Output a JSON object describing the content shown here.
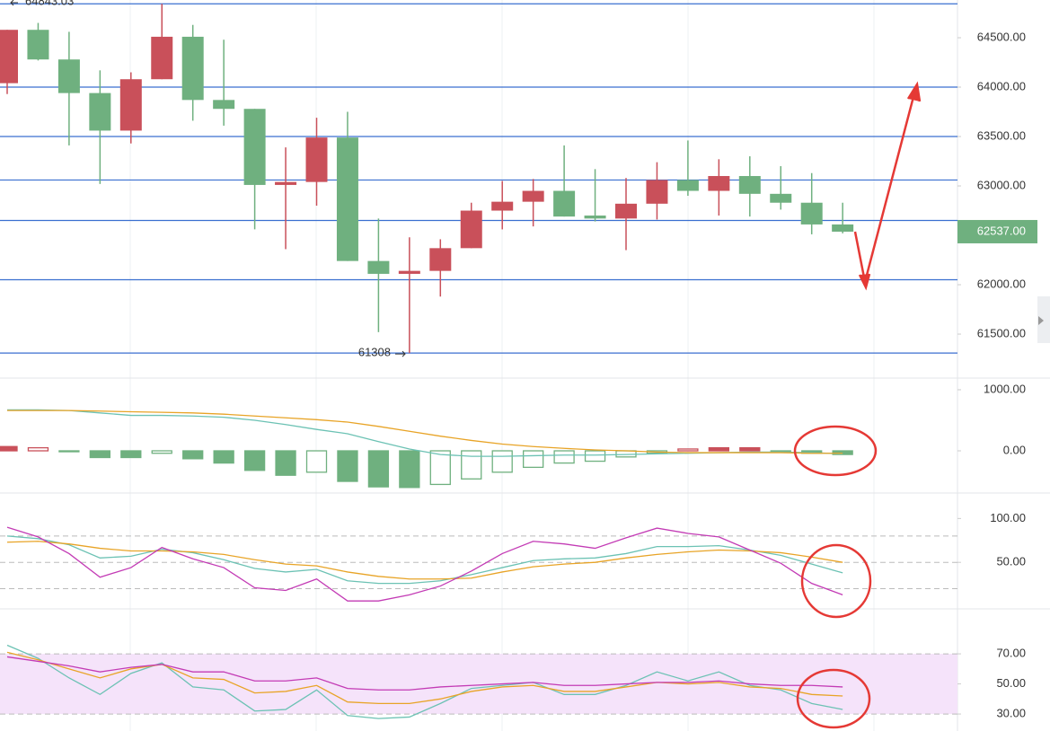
{
  "chart_data": [
    {
      "type": "candlestick",
      "up_color": "#c9505a",
      "down_color": "#6fb07f",
      "line_color": "#3a6fd0",
      "open": [
        64040,
        64580,
        64280,
        63940,
        63560,
        64080,
        64510,
        63870,
        63780,
        63010,
        63040,
        63490,
        62240,
        62110,
        62140,
        62370,
        62750,
        62840,
        62950,
        62700,
        62670,
        62820,
        63060,
        62950,
        63100,
        62920,
        62830,
        62610
      ],
      "high": [
        64580,
        64650,
        64560,
        64170,
        64150,
        64843.03,
        64630,
        64480,
        63780,
        63390,
        63690,
        63750,
        62670,
        62480,
        62460,
        62830,
        63050,
        63070,
        63410,
        63170,
        63080,
        63240,
        63460,
        63270,
        63300,
        63200,
        63130,
        62830
      ],
      "low": [
        63930,
        64270,
        63410,
        63020,
        63430,
        64080,
        63660,
        63610,
        62560,
        62360,
        62800,
        62240,
        61520,
        61308,
        61880,
        62370,
        62560,
        62590,
        62690,
        62640,
        62350,
        62660,
        62900,
        62700,
        62690,
        62760,
        62510,
        62520
      ],
      "close": [
        64580,
        64280,
        63940,
        63560,
        64080,
        64510,
        63870,
        63780,
        63010,
        63040,
        63490,
        62240,
        62110,
        62140,
        62370,
        62750,
        62840,
        62950,
        62690,
        62670,
        62820,
        63060,
        62950,
        63100,
        62920,
        62830,
        62610,
        62537
      ],
      "horizontal_lines": [
        64843.03,
        64000,
        63500,
        63060,
        62650,
        62050,
        61308
      ],
      "last_price": {
        "value": 62537,
        "label": "62537.00"
      },
      "ylim": [
        61064,
        64882
      ],
      "yticks": [
        {
          "value": 64500,
          "label": "64500.00"
        },
        {
          "value": 64000,
          "label": "64000.00"
        },
        {
          "value": 63500,
          "label": "63500.00"
        },
        {
          "value": 63000,
          "label": "63000.00"
        },
        {
          "value": 62000,
          "label": "62000.00"
        },
        {
          "value": 61500,
          "label": "61500.00"
        }
      ]
    },
    {
      "type": "macd",
      "up_color": "#c9505a",
      "down_color": "#6fb07f",
      "histogram": [
        70,
        50,
        -15,
        -110,
        -110,
        -40,
        -130,
        -200,
        -320,
        -400,
        -350,
        -500,
        -590,
        -600,
        -550,
        -460,
        -350,
        -270,
        -200,
        -170,
        -100,
        -40,
        30,
        50,
        50,
        -10,
        -40,
        -60
      ],
      "series": [
        {
          "color": "#6cc2b4",
          "values": [
            670,
            670,
            660,
            620,
            580,
            580,
            570,
            550,
            500,
            430,
            350,
            280,
            150,
            30,
            -60,
            -90,
            -90,
            -80,
            -70,
            -70,
            -60,
            -50,
            -40,
            -30,
            -20,
            -20,
            -30,
            -50
          ]
        },
        {
          "color": "#e8a427",
          "values": [
            660,
            660,
            660,
            650,
            640,
            630,
            620,
            600,
            570,
            540,
            510,
            470,
            400,
            320,
            240,
            170,
            110,
            70,
            40,
            15,
            0,
            -20,
            -30,
            -30,
            -30,
            -30,
            -40,
            -40
          ]
        }
      ],
      "ylim": [
        -676,
        1176
      ],
      "yticks": [
        {
          "value": 1000,
          "label": "1000.00"
        },
        {
          "value": 0,
          "label": "0.00"
        }
      ]
    },
    {
      "type": "line",
      "series": [
        {
          "color": "#6cc2b4",
          "values": [
            80,
            77,
            70,
            55,
            57,
            65,
            61,
            53,
            43,
            39,
            42,
            29,
            26,
            26,
            29,
            36,
            44,
            52,
            54,
            55,
            60,
            68,
            68,
            69,
            64,
            58,
            48,
            38
          ]
        },
        {
          "color": "#e8a427",
          "values": [
            73,
            74,
            71,
            66,
            63,
            63,
            62,
            59,
            53,
            48,
            46,
            39,
            34,
            31,
            31,
            32,
            39,
            45,
            48,
            50,
            55,
            59,
            62,
            64,
            63,
            61,
            56,
            50
          ]
        },
        {
          "color": "#c33bb5",
          "values": [
            90,
            79,
            60,
            33,
            44,
            67,
            54,
            44,
            21,
            18,
            31,
            6,
            6,
            13,
            23,
            40,
            60,
            74,
            71,
            66,
            78,
            89,
            83,
            79,
            64,
            49,
            26,
            13
          ]
        }
      ],
      "dashed_lines": [
        80,
        50,
        20
      ],
      "ylim": [
        -2,
        128
      ],
      "yticks": [
        {
          "value": 100,
          "label": "100.00"
        },
        {
          "value": 50,
          "label": "50.00"
        }
      ]
    },
    {
      "type": "line",
      "band": [
        30,
        70
      ],
      "band_color": "#f5e3fa",
      "series": [
        {
          "color": "#6cc2b4",
          "values": [
            75.7,
            67,
            54,
            43,
            57,
            64,
            48,
            46,
            32,
            33,
            46,
            29,
            27,
            28,
            37,
            47,
            49,
            51,
            43,
            43,
            49,
            58,
            52,
            58,
            49,
            46,
            37,
            33
          ]
        },
        {
          "color": "#e8a427",
          "values": [
            71,
            66,
            60,
            54,
            60,
            63,
            54,
            53,
            44,
            45,
            49,
            38,
            37,
            37,
            40,
            45,
            48,
            49,
            45,
            45,
            48,
            51,
            50,
            51,
            48,
            47,
            43,
            42
          ]
        },
        {
          "color": "#c33bb5",
          "values": [
            68,
            65,
            62,
            58,
            61,
            63,
            58,
            58,
            52,
            52,
            54,
            47,
            46,
            46,
            48,
            49,
            50,
            51,
            49,
            49,
            50,
            51,
            51,
            52,
            50,
            49,
            49,
            48
          ]
        }
      ],
      "dashed_lines": [
        70,
        30
      ],
      "ylim": [
        18.7,
        98.7
      ],
      "yticks": [
        {
          "value": 70,
          "label": "70.00"
        },
        {
          "value": 50,
          "label": "50.00"
        },
        {
          "value": 30,
          "label": "30.00"
        }
      ]
    }
  ]
}
